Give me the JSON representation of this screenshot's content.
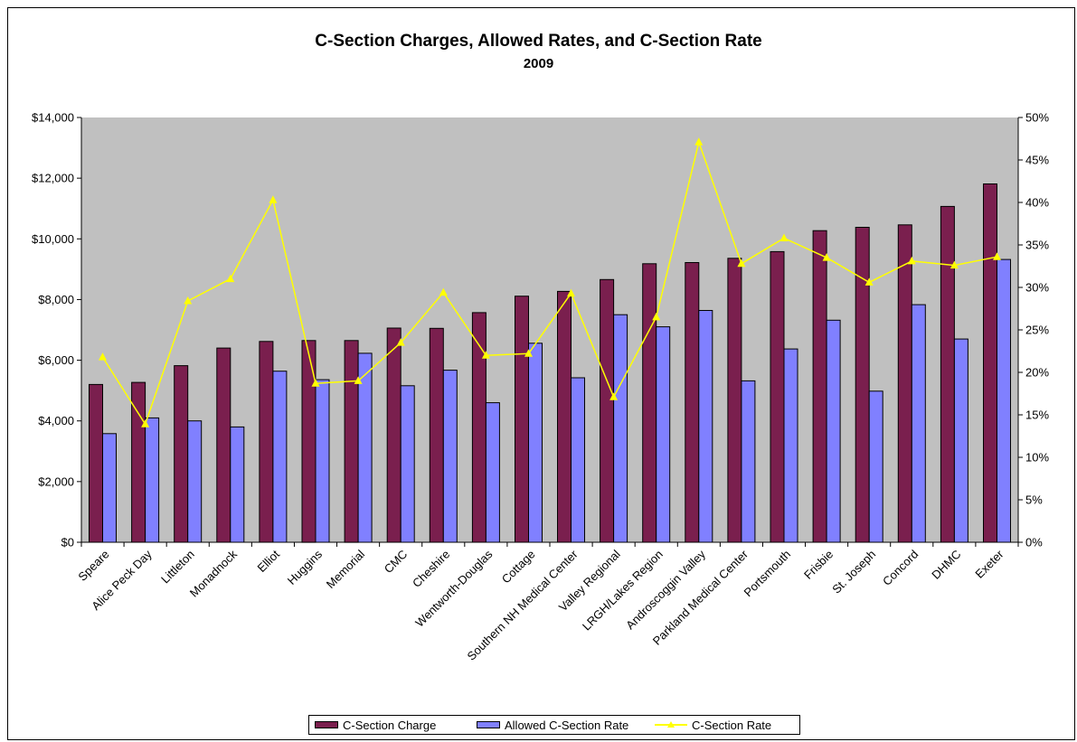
{
  "chart_data": {
    "type": "bar",
    "title": "C-Section Charges, Allowed Rates, and C-Section Rate",
    "subtitle": "2009",
    "categories": [
      "Speare",
      "Alice Peck Day",
      "Littleton",
      "Monadnock",
      "Elliot",
      "Huggins",
      "Memorial",
      "CMC",
      "Cheshire",
      "Wentworth-Douglas",
      "Cottage",
      "Southern NH Medical Center",
      "Valley Regional",
      "LRGH/Lakes Region",
      "Androscoggin Valley",
      "Parkland Medical Center",
      "Portsmouth",
      "Frisbie",
      "St. Joseph",
      "Concord",
      "DHMC",
      "Exeter"
    ],
    "series": [
      {
        "name": "C-Section Charge",
        "type": "bar",
        "axis": "left",
        "color": "#7a1f4e",
        "values": [
          5200,
          5270,
          5820,
          6400,
          6620,
          6650,
          6650,
          7060,
          7050,
          7570,
          8110,
          8270,
          8660,
          9180,
          9220,
          9360,
          9580,
          10270,
          10380,
          10460,
          11070,
          11810
        ]
      },
      {
        "name": "Allowed C-Section Rate",
        "type": "bar",
        "axis": "left",
        "color": "#8080ff",
        "values": [
          3580,
          4100,
          4000,
          3800,
          5640,
          5360,
          6230,
          5160,
          5670,
          4600,
          6560,
          5420,
          7500,
          7100,
          7640,
          5320,
          6370,
          7320,
          4980,
          7830,
          6700,
          9320
        ]
      },
      {
        "name": "C-Section Rate",
        "type": "line",
        "axis": "right",
        "color": "#ffff00",
        "values": [
          0.218,
          0.139,
          0.284,
          0.31,
          0.403,
          0.187,
          0.19,
          0.235,
          0.294,
          0.22,
          0.222,
          0.293,
          0.171,
          0.265,
          0.471,
          0.328,
          0.358,
          0.335,
          0.306,
          0.331,
          0.326,
          0.336
        ]
      }
    ],
    "ylim_left": [
      0,
      14000
    ],
    "ylim_right": [
      0,
      0.5
    ],
    "y_left_ticks": [
      "$0",
      "$2,000",
      "$4,000",
      "$6,000",
      "$8,000",
      "$10,000",
      "$12,000",
      "$14,000"
    ],
    "y_right_ticks": [
      "0%",
      "5%",
      "10%",
      "15%",
      "20%",
      "25%",
      "30%",
      "35%",
      "40%",
      "45%",
      "50%"
    ],
    "plot_background": "#c0c0c0",
    "grid": false,
    "legend_position": "bottom"
  }
}
